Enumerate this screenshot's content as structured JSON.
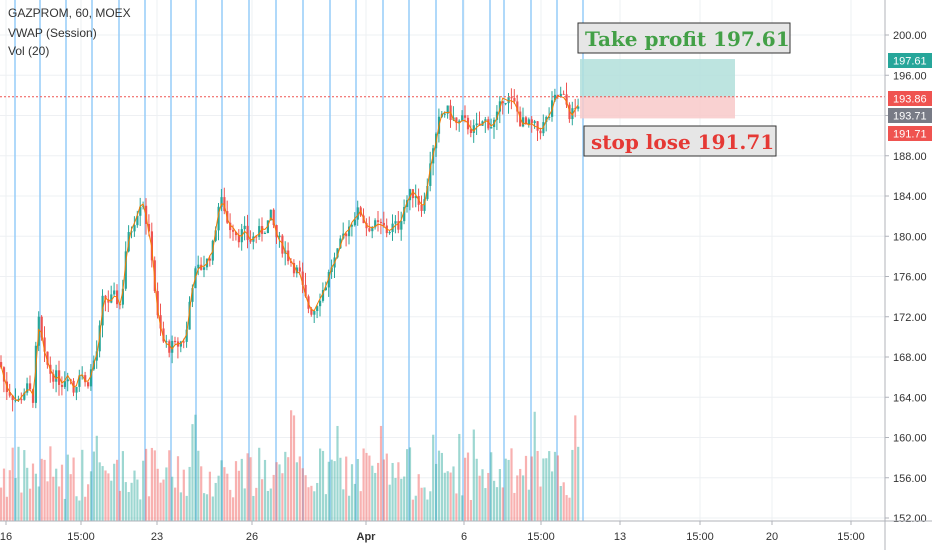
{
  "legend": {
    "symbol_line": "GAZPROM, 60, MOEX",
    "vwap_line": "VWAP (Session)",
    "vol_line": "Vol (20)"
  },
  "annotations": {
    "take_profit": "Take profit 197.61",
    "stop_loss": "stop lose 191.71"
  },
  "price_tags": {
    "take_profit": "197.61",
    "entry": "193.86",
    "last": "193.71",
    "stop_loss": "191.71"
  },
  "colors": {
    "up": "#26a69a",
    "down": "#ef5350",
    "vwap": "#f57c00",
    "session_line": "#90caf9",
    "profit_zone": "#b2dfdb",
    "loss_zone": "#f8c9c9",
    "take_profit_text": "#43a047",
    "stop_loss_text": "#e53935",
    "tag_entry": "#ef5350",
    "tag_last": "#787b86",
    "tag_profit": "#26a69a"
  },
  "chart_data": {
    "type": "candlestick",
    "ylim": [
      150,
      202
    ],
    "y_ticks": [
      152,
      156,
      160,
      164,
      168,
      172,
      176,
      180,
      184,
      188,
      192,
      196,
      200
    ],
    "y_tick_labels": [
      "152.00",
      "156.00",
      "160.00",
      "164.00",
      "168.00",
      "172.00",
      "176.00",
      "180.00",
      "184.00",
      "188.00",
      "192.00",
      "196.00",
      "200.00"
    ],
    "x_tick_labels": [
      "16",
      "15:00",
      "23",
      "26",
      "Apr",
      "6",
      "15:00",
      "13",
      "15:00",
      "20",
      "15:00"
    ],
    "entry_price": 193.86,
    "take_profit": 197.61,
    "stop_loss": 191.71,
    "last_price": 193.71,
    "close_path": [
      [
        0,
        167.5
      ],
      [
        5,
        165
      ],
      [
        10,
        164.5
      ],
      [
        18,
        163.5
      ],
      [
        26,
        165
      ],
      [
        33,
        164
      ],
      [
        38,
        172
      ],
      [
        44,
        168
      ],
      [
        50,
        166.5
      ],
      [
        56,
        166
      ],
      [
        62,
        165.5
      ],
      [
        68,
        166.5
      ],
      [
        74,
        164.5
      ],
      [
        80,
        167
      ],
      [
        86,
        165
      ],
      [
        92,
        167
      ],
      [
        98,
        169
      ],
      [
        103,
        174
      ],
      [
        109,
        173.5
      ],
      [
        115,
        174
      ],
      [
        121,
        173
      ],
      [
        126,
        179
      ],
      [
        132,
        181
      ],
      [
        137,
        182.5
      ],
      [
        142,
        184
      ],
      [
        147,
        181
      ],
      [
        152,
        178
      ],
      [
        157,
        172
      ],
      [
        163,
        169.5
      ],
      [
        169,
        169
      ],
      [
        175,
        169
      ],
      [
        181,
        169.5
      ],
      [
        186,
        170
      ],
      [
        191,
        175
      ],
      [
        196,
        176.5
      ],
      [
        202,
        177
      ],
      [
        207,
        177.5
      ],
      [
        213,
        179
      ],
      [
        218,
        183
      ],
      [
        223,
        183.5
      ],
      [
        228,
        181
      ],
      [
        233,
        181
      ],
      [
        238,
        180
      ],
      [
        244,
        180.5
      ],
      [
        249,
        179.5
      ],
      [
        255,
        180
      ],
      [
        261,
        180.5
      ],
      [
        266,
        181
      ],
      [
        271,
        182
      ],
      [
        276,
        180
      ],
      [
        282,
        179
      ],
      [
        288,
        178
      ],
      [
        294,
        177
      ],
      [
        300,
        176
      ],
      [
        304,
        174
      ],
      [
        308,
        173
      ],
      [
        313,
        172.5
      ],
      [
        319,
        174
      ],
      [
        325,
        175
      ],
      [
        331,
        177
      ],
      [
        337,
        178
      ],
      [
        343,
        180
      ],
      [
        349,
        181
      ],
      [
        354,
        182
      ],
      [
        360,
        182.5
      ],
      [
        366,
        181
      ],
      [
        371,
        181
      ],
      [
        376,
        181
      ],
      [
        382,
        181
      ],
      [
        387,
        180.5
      ],
      [
        393,
        181
      ],
      [
        398,
        181
      ],
      [
        404,
        183
      ],
      [
        409,
        184
      ],
      [
        415,
        184.5
      ],
      [
        420,
        183
      ],
      [
        425,
        183.5
      ],
      [
        430,
        187.5
      ],
      [
        435,
        189
      ],
      [
        440,
        192
      ],
      [
        446,
        192.5
      ],
      [
        451,
        192
      ],
      [
        457,
        191
      ],
      [
        462,
        191.5
      ],
      [
        468,
        191
      ],
      [
        474,
        190.5
      ],
      [
        480,
        191
      ],
      [
        486,
        191.5
      ],
      [
        492,
        191
      ],
      [
        498,
        192
      ],
      [
        503,
        194
      ],
      [
        509,
        193.5
      ],
      [
        515,
        193
      ],
      [
        520,
        191.5
      ],
      [
        526,
        191
      ],
      [
        532,
        191
      ],
      [
        538,
        190.5
      ],
      [
        543,
        191
      ],
      [
        549,
        192
      ],
      [
        554,
        193.5
      ],
      [
        559,
        194
      ],
      [
        565,
        193.5
      ],
      [
        570,
        192
      ],
      [
        575,
        192.5
      ],
      [
        580,
        193.7
      ]
    ],
    "volume_ylim": [
      0,
      160
    ],
    "visible_range": {
      "x_min": 0,
      "x_max": 580
    }
  }
}
